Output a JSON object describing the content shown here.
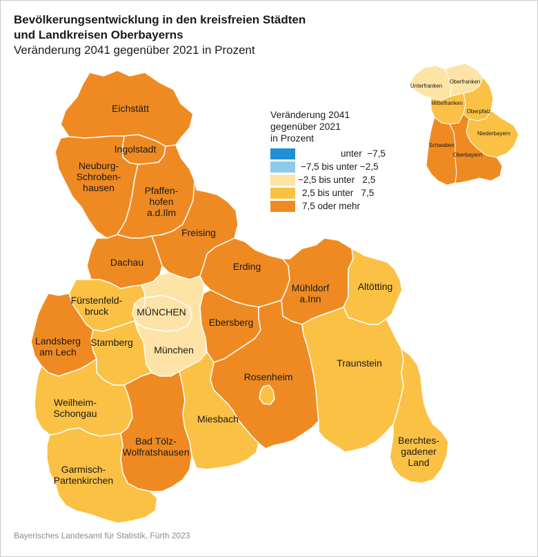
{
  "title_line1": "Bevölkerungsentwicklung in den kreisfreien Städten",
  "title_line2": "und Landkreisen Oberbayerns",
  "subtitle": "Veränderung 2041 gegenüber 2021 in Prozent",
  "source": "Bayerisches Landesamt für Statistik, Fürth 2023",
  "legend": {
    "title_lines": [
      "Veränderung 2041",
      "gegenüber 2021",
      "in Prozent"
    ],
    "items": [
      {
        "label": "unter  −7,5",
        "color": "#1e8fd6"
      },
      {
        "label": "−7,5 bis unter −2,5",
        "color": "#8ec9ec"
      },
      {
        "label": "−2,5 bis unter   2,5",
        "color": "#fde4a6"
      },
      {
        "label": "2,5 bis unter   7,5",
        "color": "#fbc144"
      },
      {
        "label": "7,5 oder mehr",
        "color": "#ef8a22"
      }
    ]
  },
  "colors": {
    "high": "#ef8a22",
    "mid": "#fbc144",
    "low": "#fde4a6",
    "border": "#ffffff"
  },
  "map": {
    "districts": [
      {
        "id": "eichstaett",
        "lines": [
          "Eichstätt"
        ],
        "class": "7,5 oder mehr"
      },
      {
        "id": "ingolstadt",
        "lines": [
          "Ingolstadt"
        ],
        "class": "7,5 oder mehr"
      },
      {
        "id": "neuburg",
        "lines": [
          "Neuburg-",
          "Schroben-",
          "hausen"
        ],
        "class": "7,5 oder mehr"
      },
      {
        "id": "pfaffenhofen",
        "lines": [
          "Pfaffen-",
          "hofen",
          "a.d.Ilm"
        ],
        "class": "7,5 oder mehr"
      },
      {
        "id": "freising",
        "lines": [
          "Freising"
        ],
        "class": "7,5 oder mehr"
      },
      {
        "id": "dachau",
        "lines": [
          "Dachau"
        ],
        "class": "7,5 oder mehr"
      },
      {
        "id": "erding",
        "lines": [
          "Erding"
        ],
        "class": "7,5 oder mehr"
      },
      {
        "id": "muehldorf",
        "lines": [
          "Mühldorf",
          "a.Inn"
        ],
        "class": "7,5 oder mehr"
      },
      {
        "id": "altoetting",
        "lines": [
          "Altötting"
        ],
        "class": "2,5 bis unter 7,5"
      },
      {
        "id": "fuerstenfeldbruck",
        "lines": [
          "Fürstenfeld-",
          "bruck"
        ],
        "class": "2,5 bis unter 7,5"
      },
      {
        "id": "muenchen_stadt",
        "lines": [
          "MÜNCHEN"
        ],
        "class": "−2,5 bis unter 2,5"
      },
      {
        "id": "landsberg",
        "lines": [
          "Landsberg",
          "am Lech"
        ],
        "class": "7,5 oder mehr"
      },
      {
        "id": "starnberg",
        "lines": [
          "Starnberg"
        ],
        "class": "2,5 bis unter 7,5"
      },
      {
        "id": "muenchen_lk",
        "lines": [
          "München"
        ],
        "class": "−2,5 bis unter 2,5"
      },
      {
        "id": "ebersberg",
        "lines": [
          "Ebersberg"
        ],
        "class": "7,5 oder mehr"
      },
      {
        "id": "rosenheim",
        "lines": [
          "Rosenheim"
        ],
        "class": "7,5 oder mehr"
      },
      {
        "id": "traunstein",
        "lines": [
          "Traunstein"
        ],
        "class": "2,5 bis unter 7,5"
      },
      {
        "id": "weilheim",
        "lines": [
          "Weilheim-",
          "Schongau"
        ],
        "class": "2,5 bis unter 7,5"
      },
      {
        "id": "miesbach",
        "lines": [
          "Miesbach"
        ],
        "class": "2,5 bis unter 7,5"
      },
      {
        "id": "badtoelz",
        "lines": [
          "Bad Tölz-",
          "Wolfratshausen"
        ],
        "class": "7,5 oder mehr"
      },
      {
        "id": "berchtesgaden",
        "lines": [
          "Berchtes-",
          "gadener",
          "Land"
        ],
        "class": "2,5 bis unter 7,5"
      },
      {
        "id": "garmisch",
        "lines": [
          "Garmisch-",
          "Partenkirchen"
        ],
        "class": "2,5 bis unter 7,5"
      }
    ]
  },
  "inset": {
    "regions": [
      {
        "id": "unterfranken",
        "label": "Unterfranken",
        "class": "−2,5 bis unter 2,5"
      },
      {
        "id": "oberfranken",
        "label": "Oberfranken",
        "class": "−2,5 bis unter 2,5"
      },
      {
        "id": "mittelfranken",
        "label": "Mittelfranken",
        "class": "2,5 bis unter 7,5"
      },
      {
        "id": "oberpfalz",
        "label": "Oberpfalz",
        "class": "2,5 bis unter 7,5"
      },
      {
        "id": "niederbayern",
        "label": "Niederbayern",
        "class": "2,5 bis unter 7,5"
      },
      {
        "id": "schwaben",
        "label": "Schwaben",
        "class": "7,5 oder mehr"
      },
      {
        "id": "oberbayern",
        "label": "Oberbayern",
        "class": "7,5 oder mehr"
      }
    ]
  }
}
